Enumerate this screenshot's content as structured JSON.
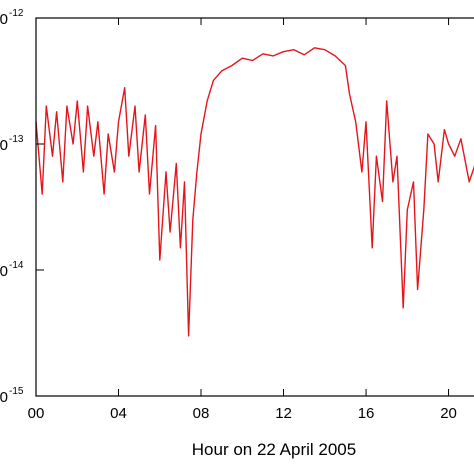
{
  "chart_data": {
    "type": "line",
    "title": "",
    "xlabel": "Hour on 22 April 2005",
    "ylabel": "",
    "y_scale": "log",
    "xlim": [
      0,
      22.3
    ],
    "ylim": [
      1e-15,
      1e-12
    ],
    "x_ticks": [
      {
        "value": 0,
        "label": "00"
      },
      {
        "value": 4,
        "label": "04"
      },
      {
        "value": 8,
        "label": "08"
      },
      {
        "value": 12,
        "label": "12"
      },
      {
        "value": 16,
        "label": "16"
      },
      {
        "value": 20,
        "label": "20"
      }
    ],
    "y_ticks": [
      {
        "value": 1e-12,
        "base_label": "0",
        "exponent": "-12"
      },
      {
        "value": 1e-13,
        "base_label": "0",
        "exponent": "-13"
      },
      {
        "value": 1e-14,
        "base_label": "0",
        "exponent": "-14"
      },
      {
        "value": 1e-15,
        "base_label": "0",
        "exponent": "-15"
      }
    ],
    "grid": false,
    "legend": "none",
    "series": [
      {
        "color": "#e4161d",
        "x": [
          0.0,
          0.3,
          0.5,
          0.8,
          1.0,
          1.3,
          1.5,
          1.8,
          2.0,
          2.3,
          2.5,
          2.8,
          3.0,
          3.3,
          3.5,
          3.8,
          4.0,
          4.3,
          4.5,
          4.8,
          5.0,
          5.3,
          5.5,
          5.8,
          6.0,
          6.3,
          6.5,
          6.8,
          7.0,
          7.2,
          7.4,
          7.6,
          7.8,
          8.0,
          8.3,
          8.6,
          9.0,
          9.5,
          10.0,
          10.5,
          11.0,
          11.5,
          12.0,
          12.5,
          13.0,
          13.5,
          14.0,
          14.5,
          15.0,
          15.2,
          15.5,
          15.8,
          16.0,
          16.3,
          16.5,
          16.8,
          17.0,
          17.3,
          17.5,
          17.8,
          18.0,
          18.3,
          18.5,
          18.8,
          19.0,
          19.3,
          19.5,
          19.8,
          20.0,
          20.3,
          20.6,
          21.0,
          21.3,
          21.6,
          22.0,
          22.3
        ],
        "y": [
          1.5e-13,
          4e-14,
          2e-13,
          8e-14,
          1.8e-13,
          5e-14,
          2e-13,
          1e-13,
          2.2e-13,
          6e-14,
          2e-13,
          8e-14,
          1.5e-13,
          4e-14,
          1.2e-13,
          6e-14,
          1.5e-13,
          2.8e-13,
          8e-14,
          2e-13,
          6e-14,
          1.7e-13,
          4e-14,
          1.4e-13,
          1.2e-14,
          6e-14,
          2e-14,
          7e-14,
          1.5e-14,
          5e-14,
          3e-15,
          2.5e-14,
          6e-14,
          1.2e-13,
          2.2e-13,
          3.2e-13,
          3.8e-13,
          4.2e-13,
          4.8e-13,
          4.6e-13,
          5.2e-13,
          5e-13,
          5.4e-13,
          5.6e-13,
          5.1e-13,
          5.8e-13,
          5.6e-13,
          5e-13,
          4.2e-13,
          2.5e-13,
          1.5e-13,
          6e-14,
          1.5e-13,
          1.5e-14,
          8e-14,
          3.5e-14,
          2.2e-13,
          5e-14,
          8e-14,
          5e-15,
          3e-14,
          5e-14,
          7e-15,
          3e-14,
          1.2e-13,
          1e-13,
          5e-14,
          1.3e-13,
          1e-13,
          8e-14,
          1.1e-13,
          5e-14,
          7e-14,
          3.5e-14,
          4.5e-14,
          4e-14
        ]
      }
    ]
  }
}
